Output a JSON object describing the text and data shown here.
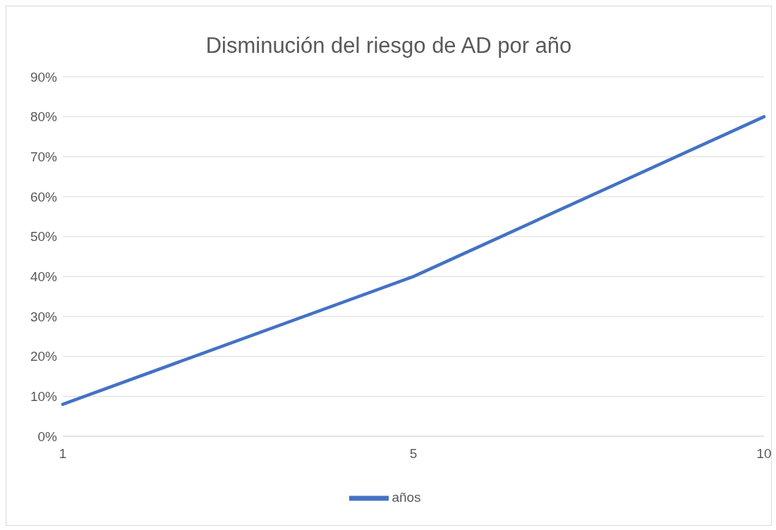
{
  "chart_data": {
    "type": "line",
    "title": "Disminución del riesgo de AD por año",
    "categories": [
      "1",
      "5",
      "10"
    ],
    "series": [
      {
        "name": "años",
        "color": "#4472c4",
        "values": [
          8,
          40,
          80
        ]
      }
    ],
    "ylim": [
      0,
      90
    ],
    "yticks": [
      {
        "value": 0,
        "label": "0%"
      },
      {
        "value": 10,
        "label": "10%"
      },
      {
        "value": 20,
        "label": "20%"
      },
      {
        "value": 30,
        "label": "30%"
      },
      {
        "value": 40,
        "label": "40%"
      },
      {
        "value": 50,
        "label": "50%"
      },
      {
        "value": 60,
        "label": "60%"
      },
      {
        "value": 70,
        "label": "70%"
      },
      {
        "value": 80,
        "label": "80%"
      },
      {
        "value": 90,
        "label": "90%"
      }
    ],
    "grid": "y",
    "legend": "bottom",
    "marker": "none",
    "line_style": "solid"
  }
}
